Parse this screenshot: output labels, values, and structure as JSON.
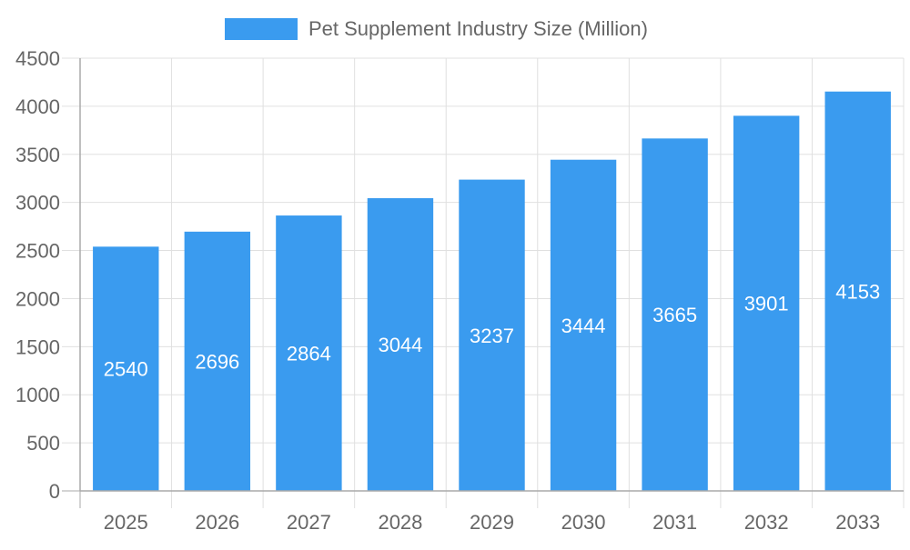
{
  "chart_data": {
    "type": "bar",
    "title": "",
    "xlabel": "",
    "ylabel": "",
    "categories": [
      "2025",
      "2026",
      "2027",
      "2028",
      "2029",
      "2030",
      "2031",
      "2032",
      "2033"
    ],
    "series": [
      {
        "name": "Pet Supplement Industry Size (Million)",
        "values": [
          2540,
          2696,
          2864,
          3044,
          3237,
          3444,
          3665,
          3901,
          4153
        ],
        "color": "#3a9bef"
      }
    ],
    "ylim": [
      0,
      4500
    ],
    "yticks": [
      0,
      500,
      1000,
      1500,
      2000,
      2500,
      3000,
      3500,
      4000,
      4500
    ],
    "grid": true,
    "legend_position": "top-center",
    "data_labels": true,
    "data_label_color": "#ffffff"
  }
}
